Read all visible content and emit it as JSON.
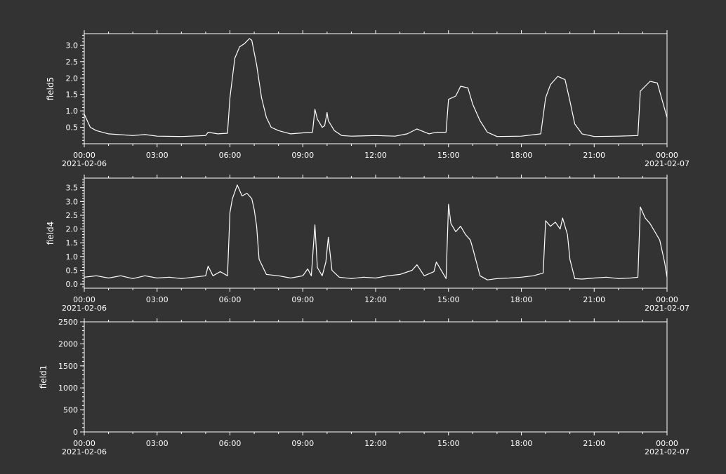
{
  "colors": {
    "background": "#333333",
    "axes": "#ffffff",
    "line": "#ffffff",
    "text": "#ffffff"
  },
  "chart_data": [
    {
      "type": "line",
      "ylabel": "field5",
      "xlabel": "",
      "title": "",
      "grid": false,
      "legend": "none",
      "xlim": [
        "2021-02-06 00:00",
        "2021-02-07 00:00"
      ],
      "ylim": [
        0.0,
        3.35
      ],
      "x_ticks": [
        "00:00",
        "03:00",
        "06:00",
        "09:00",
        "12:00",
        "15:00",
        "18:00",
        "21:00",
        "00:00"
      ],
      "x_date_left": "2021-02-06",
      "x_date_right": "2021-02-07",
      "y_ticks": [
        0.5,
        1.0,
        1.5,
        2.0,
        2.5,
        3.0
      ],
      "y_tick_labels": [
        "0.5",
        "1.0",
        "1.5",
        "2.0",
        "2.5",
        "3.0"
      ],
      "x_unit": "hours since 2021-02-06 00:00",
      "series": [
        {
          "x": [
            0.0,
            0.25,
            0.5,
            1.0,
            2.0,
            2.5,
            3.0,
            4.0,
            5.0,
            5.1,
            5.5,
            5.9,
            6.0,
            6.2,
            6.4,
            6.6,
            6.8,
            6.9,
            7.1,
            7.3,
            7.5,
            7.7,
            8.0,
            8.5,
            9.0,
            9.4,
            9.5,
            9.6,
            9.8,
            9.9,
            10.0,
            10.05,
            10.3,
            10.6,
            11.0,
            12.0,
            12.8,
            13.3,
            13.7,
            14.2,
            14.5,
            14.9,
            15.0,
            15.3,
            15.5,
            15.8,
            16.0,
            16.3,
            16.6,
            17.0,
            18.0,
            18.8,
            19.0,
            19.2,
            19.5,
            19.8,
            20.0,
            20.2,
            20.5,
            21.0,
            22.0,
            22.8,
            22.9,
            23.3,
            23.6,
            24.0
          ],
          "y": [
            0.9,
            0.5,
            0.4,
            0.3,
            0.25,
            0.28,
            0.23,
            0.22,
            0.25,
            0.35,
            0.3,
            0.32,
            1.4,
            2.6,
            2.95,
            3.05,
            3.2,
            3.15,
            2.4,
            1.4,
            0.8,
            0.5,
            0.4,
            0.3,
            0.33,
            0.35,
            1.05,
            0.75,
            0.5,
            0.55,
            0.95,
            0.7,
            0.4,
            0.25,
            0.23,
            0.25,
            0.23,
            0.3,
            0.45,
            0.3,
            0.35,
            0.35,
            1.35,
            1.45,
            1.75,
            1.7,
            1.2,
            0.7,
            0.35,
            0.22,
            0.23,
            0.3,
            1.4,
            1.8,
            2.05,
            1.95,
            1.3,
            0.6,
            0.3,
            0.22,
            0.23,
            0.25,
            1.6,
            1.9,
            1.85,
            0.8
          ]
        }
      ]
    },
    {
      "type": "line",
      "ylabel": "field4",
      "xlabel": "",
      "title": "",
      "grid": false,
      "legend": "none",
      "xlim": [
        "2021-02-06 00:00",
        "2021-02-07 00:00"
      ],
      "ylim": [
        -0.15,
        3.85
      ],
      "x_ticks": [
        "00:00",
        "03:00",
        "06:00",
        "09:00",
        "12:00",
        "15:00",
        "18:00",
        "21:00",
        "00:00"
      ],
      "x_date_left": "2021-02-06",
      "x_date_right": "2021-02-07",
      "y_ticks": [
        0.0,
        0.5,
        1.0,
        1.5,
        2.0,
        2.5,
        3.0,
        3.5
      ],
      "y_tick_labels": [
        "0.0",
        "0.5",
        "1.0",
        "1.5",
        "2.0",
        "2.5",
        "3.0",
        "3.5"
      ],
      "x_unit": "hours since 2021-02-06 00:00",
      "series": [
        {
          "x": [
            0.0,
            0.5,
            1.0,
            1.5,
            2.0,
            2.5,
            3.0,
            3.5,
            4.0,
            4.5,
            5.0,
            5.1,
            5.3,
            5.6,
            5.9,
            6.0,
            6.1,
            6.3,
            6.5,
            6.7,
            6.9,
            7.0,
            7.1,
            7.2,
            7.5,
            8.0,
            8.5,
            9.0,
            9.2,
            9.35,
            9.5,
            9.6,
            9.8,
            9.95,
            10.05,
            10.2,
            10.5,
            11.0,
            11.5,
            12.0,
            12.5,
            13.0,
            13.5,
            13.7,
            14.0,
            14.4,
            14.5,
            14.9,
            15.0,
            15.1,
            15.3,
            15.5,
            15.7,
            15.9,
            16.0,
            16.3,
            16.6,
            17.0,
            17.5,
            18.0,
            18.5,
            18.9,
            19.0,
            19.2,
            19.4,
            19.6,
            19.7,
            19.9,
            20.0,
            20.2,
            20.5,
            21.0,
            21.5,
            22.0,
            22.5,
            22.8,
            22.9,
            23.1,
            23.3,
            23.5,
            23.7,
            23.9,
            24.0
          ],
          "y": [
            0.25,
            0.3,
            0.22,
            0.3,
            0.2,
            0.3,
            0.22,
            0.25,
            0.2,
            0.25,
            0.3,
            0.65,
            0.3,
            0.45,
            0.3,
            2.6,
            3.1,
            3.6,
            3.2,
            3.3,
            3.1,
            2.7,
            2.1,
            0.9,
            0.35,
            0.3,
            0.22,
            0.3,
            0.55,
            0.3,
            2.15,
            0.6,
            0.3,
            0.8,
            1.7,
            0.5,
            0.25,
            0.2,
            0.25,
            0.22,
            0.3,
            0.35,
            0.5,
            0.7,
            0.3,
            0.45,
            0.8,
            0.2,
            2.9,
            2.2,
            1.9,
            2.1,
            1.8,
            1.6,
            1.3,
            0.3,
            0.15,
            0.2,
            0.22,
            0.25,
            0.3,
            0.4,
            2.3,
            2.1,
            2.25,
            2.0,
            2.4,
            1.8,
            0.9,
            0.2,
            0.18,
            0.22,
            0.25,
            0.2,
            0.22,
            0.25,
            2.8,
            2.4,
            2.2,
            1.9,
            1.6,
            0.8,
            0.25
          ]
        }
      ]
    },
    {
      "type": "line",
      "ylabel": "field1",
      "xlabel": "",
      "title": "",
      "grid": false,
      "legend": "none",
      "xlim": [
        "2021-02-06 00:00",
        "2021-02-07 00:00"
      ],
      "ylim": [
        0,
        2500
      ],
      "x_ticks": [
        "00:00",
        "03:00",
        "06:00",
        "09:00",
        "12:00",
        "15:00",
        "18:00",
        "21:00",
        "00:00"
      ],
      "x_date_left": "2021-02-06",
      "x_date_right": "2021-02-07",
      "y_ticks": [
        0,
        500,
        1000,
        1500,
        2000,
        2500
      ],
      "y_tick_labels": [
        "0",
        "500",
        "1000",
        "1500",
        "2000",
        "2500"
      ],
      "x_unit": "hours since 2021-02-06 00:00",
      "series": []
    }
  ]
}
